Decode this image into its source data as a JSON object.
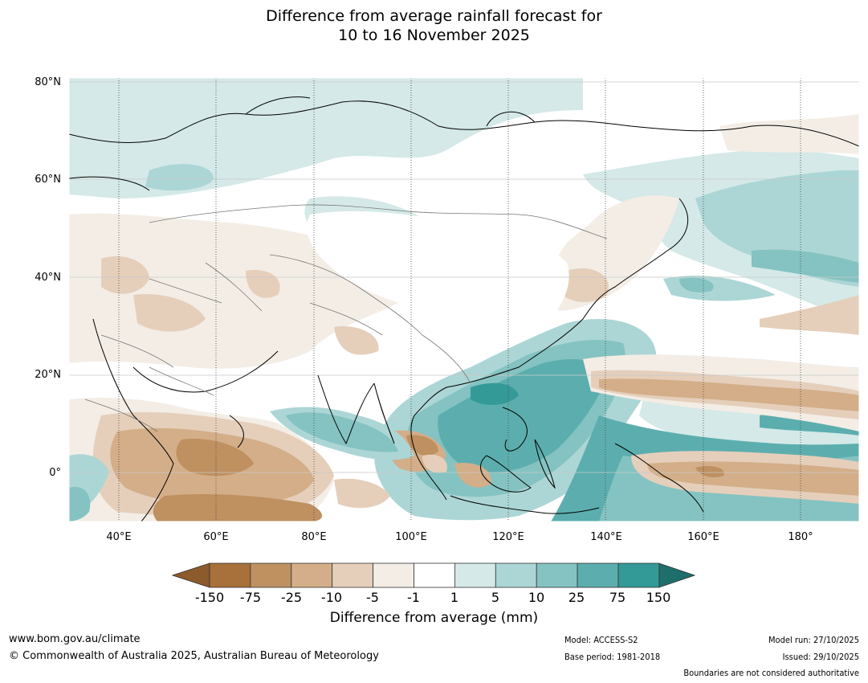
{
  "title": {
    "line1": "Difference from average rainfall forecast for",
    "line2": "10 to 16 November 2025"
  },
  "lat_labels": [
    "80°N",
    "60°N",
    "40°N",
    "20°N",
    "0°"
  ],
  "lon_labels": [
    "40°E",
    "60°E",
    "80°E",
    "100°E",
    "120°E",
    "140°E",
    "160°E",
    "180°"
  ],
  "colorbar": {
    "ticks": [
      "-150",
      "-75",
      "-25",
      "-10",
      "-5",
      "-1",
      "1",
      "5",
      "10",
      "25",
      "75",
      "150"
    ],
    "colors": [
      "#a8703a",
      "#bf9060",
      "#d3ae88",
      "#e5cfbb",
      "#f3ede6",
      "#ffffff",
      "#d4e9e8",
      "#acd6d5",
      "#84c3c2",
      "#5caeae",
      "#339a98"
    ],
    "under_color": "#8c5a2b",
    "over_color": "#1e6e6b",
    "label": "Difference from average (mm)"
  },
  "footer": {
    "website": "www.bom.gov.au/climate",
    "copyright": "© Commonwealth of Australia 2025, Australian Bureau of Meteorology",
    "model": "Model: ACCESS-S2",
    "base_period": "Base period: 1981-2018",
    "model_run": "Model run: 27/10/2025",
    "issued": "Issued: 29/10/2025",
    "disclaimer": "Boundaries are not considered authoritative"
  }
}
